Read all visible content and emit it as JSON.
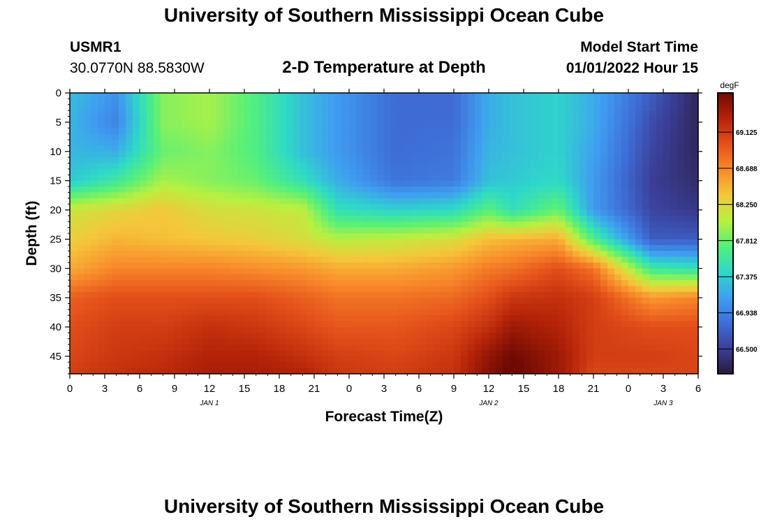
{
  "header": {
    "title": "University of Southern Mississippi Ocean Cube",
    "station": "USMR1",
    "coords": "30.0770N  88.5830W",
    "subtitle": "2-D Temperature at Depth",
    "model_start_label": "Model Start Time",
    "model_start_value": "01/01/2022 Hour 15"
  },
  "footer": {
    "title": "University of Southern Mississippi Ocean Cube"
  },
  "chart_data": {
    "type": "heatmap",
    "title": "2-D Temperature at Depth",
    "xlabel": "Forecast Time(Z)",
    "ylabel": "Depth (ft)",
    "x_ticks": [
      "0",
      "3",
      "6",
      "9",
      "12",
      "15",
      "18",
      "21",
      "0",
      "3",
      "6",
      "9",
      "12",
      "15",
      "18",
      "21",
      "0",
      "3",
      "6"
    ],
    "x_range_hours": [
      0,
      54
    ],
    "date_labels": [
      {
        "text": "JAN 1",
        "hour": 12
      },
      {
        "text": "JAN 2",
        "hour": 36
      },
      {
        "text": "JAN 3",
        "hour": 51
      }
    ],
    "y_ticks": [
      "0",
      "5",
      "10",
      "15",
      "20",
      "25",
      "30",
      "35",
      "40",
      "45"
    ],
    "y_range": [
      0,
      48
    ],
    "y_reversed": true,
    "colorbar": {
      "unit": "degF",
      "range": [
        66.2,
        69.6
      ],
      "ticks": [
        "69.125",
        "68.688",
        "68.250",
        "67.812",
        "67.375",
        "66.938",
        "66.500"
      ],
      "stops": [
        "#2c1a3c",
        "#3a3f98",
        "#3e6fd8",
        "#3f9ff0",
        "#2ed9c8",
        "#55f07a",
        "#b8f040",
        "#f5c63a",
        "#f88a2a",
        "#e4501a",
        "#b52308",
        "#6f0a03"
      ]
    },
    "profile_times": [
      0,
      4,
      8,
      12,
      16,
      20,
      23,
      28,
      33,
      36,
      38,
      42,
      45,
      50,
      54
    ],
    "profile_depths": [
      0,
      5,
      10,
      15,
      20,
      25,
      30,
      35,
      40,
      45,
      48
    ],
    "profiles": [
      [
        67.3,
        67.25,
        67.25,
        67.35,
        68.15,
        68.3,
        68.5,
        68.9,
        69.0,
        69.05,
        69.1
      ],
      [
        67.05,
        66.95,
        67.2,
        67.6,
        68.25,
        68.45,
        68.7,
        69.0,
        69.1,
        69.15,
        69.2
      ],
      [
        67.9,
        67.9,
        67.8,
        68.0,
        68.35,
        68.4,
        68.7,
        69.0,
        69.1,
        69.2,
        69.25
      ],
      [
        68.0,
        68.0,
        67.9,
        67.9,
        68.2,
        68.35,
        68.7,
        69.0,
        69.2,
        69.3,
        69.35
      ],
      [
        67.7,
        67.7,
        67.7,
        67.8,
        68.15,
        68.3,
        68.65,
        69.0,
        69.15,
        69.3,
        69.35
      ],
      [
        67.3,
        67.3,
        67.3,
        67.5,
        68.1,
        68.2,
        68.6,
        68.9,
        69.05,
        69.2,
        69.3
      ],
      [
        67.1,
        67.1,
        67.1,
        67.2,
        67.5,
        68.05,
        68.5,
        68.8,
        68.95,
        69.1,
        69.15
      ],
      [
        66.8,
        66.8,
        66.8,
        66.85,
        67.4,
        68.1,
        68.5,
        68.8,
        68.95,
        69.05,
        69.1
      ],
      [
        66.8,
        66.8,
        66.85,
        66.9,
        67.45,
        68.2,
        68.6,
        68.85,
        69.05,
        69.15,
        69.2
      ],
      [
        67.2,
        67.2,
        67.25,
        67.3,
        67.75,
        68.4,
        68.75,
        69.0,
        69.2,
        69.45,
        69.5
      ],
      [
        67.3,
        67.3,
        67.3,
        67.35,
        67.5,
        68.45,
        68.8,
        69.15,
        69.4,
        69.6,
        69.65
      ],
      [
        67.4,
        67.4,
        67.4,
        67.45,
        67.8,
        68.5,
        69.0,
        69.2,
        69.3,
        69.4,
        69.4
      ],
      [
        67.2,
        67.2,
        67.15,
        67.1,
        67.1,
        67.7,
        68.8,
        69.1,
        69.1,
        69.1,
        69.05
      ],
      [
        66.7,
        66.6,
        66.55,
        66.5,
        66.55,
        66.7,
        67.6,
        68.6,
        69.0,
        69.1,
        69.05
      ],
      [
        66.3,
        66.3,
        66.3,
        66.35,
        66.45,
        66.7,
        67.5,
        68.7,
        69.0,
        69.05,
        69.05
      ]
    ]
  }
}
